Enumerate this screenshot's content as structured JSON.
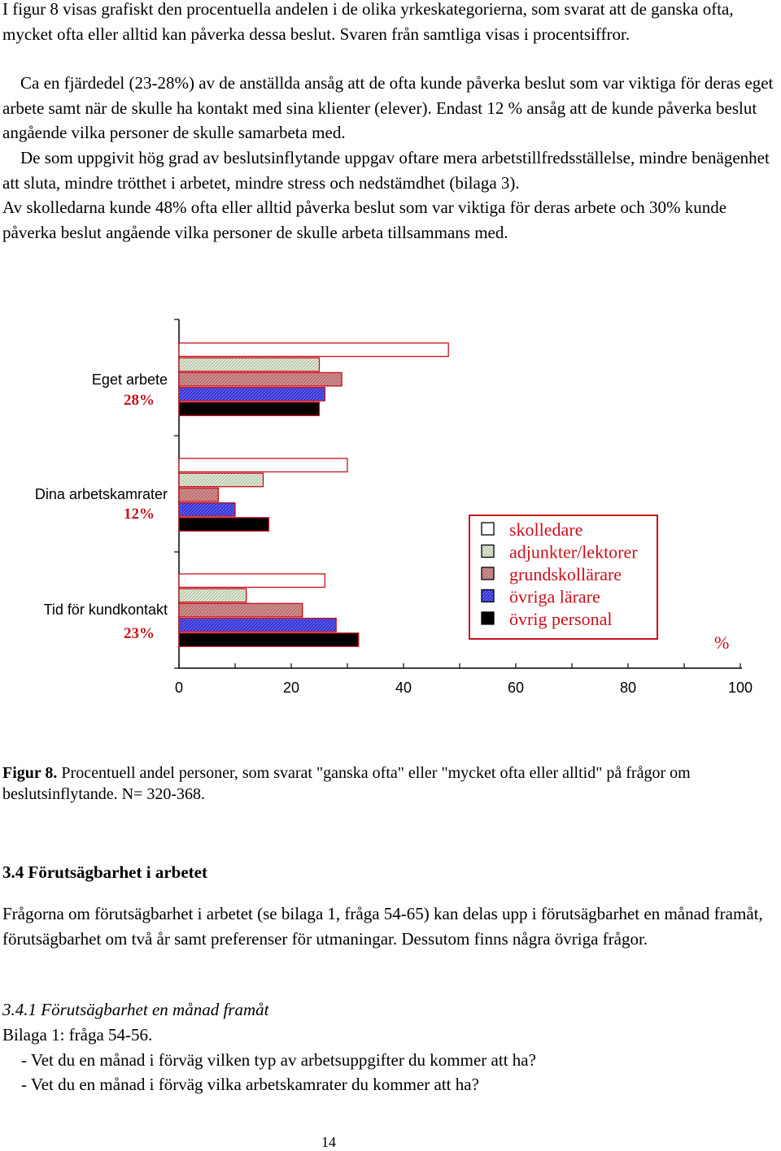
{
  "intro": {
    "p1": "I figur 8 visas grafiskt den procentuella andelen i de olika yrkeskategorierna, som svarat att de ganska ofta, mycket ofta eller alltid kan påverka dessa beslut. Svaren från samtliga visas i procentsiffror.",
    "p2": "Ca en fjärdedel (23-28%) av de anställda ansåg att de ofta kunde påverka beslut som var viktiga för deras eget arbete samt när de skulle ha kontakt med sina klienter (elever). Endast 12 % ansåg att de kunde påverka beslut angående vilka personer de skulle samarbeta med.",
    "p3": "De som uppgivit hög grad av beslutsinflytande uppgav oftare mera arbetstillfredsställelse, mindre benägenhet att sluta, mindre trötthet i arbetet, mindre stress och nedstämdhet (bilaga 3).",
    "p4": "Av skolledarna kunde 48% ofta eller alltid påverka beslut som var viktiga för deras arbete och 30% kunde påverka beslut angående vilka personer de skulle arbeta tillsammans med."
  },
  "chart_data": {
    "type": "bar",
    "orientation": "horizontal",
    "categories": [
      {
        "label": "Eget arbete",
        "total": "28%"
      },
      {
        "label": "Dina arbetskamrater",
        "total": "12%"
      },
      {
        "label": "Tid för kundkontakt",
        "total": "23%"
      }
    ],
    "series": [
      {
        "name": "skolledare",
        "values": [
          48,
          30,
          26
        ],
        "color": "#ffffff"
      },
      {
        "name": "adjunkter/lektorer",
        "values": [
          25,
          15,
          12
        ],
        "color": "#d6e4cc"
      },
      {
        "name": "grundskollärare",
        "values": [
          29,
          7,
          22
        ],
        "color": "#c98080"
      },
      {
        "name": "övriga lärare",
        "values": [
          26,
          10,
          28
        ],
        "color": "#3b3bd6"
      },
      {
        "name": "övrig personal",
        "values": [
          25,
          16,
          32
        ],
        "color": "#000000"
      }
    ],
    "x_ticks": [
      "0",
      "20",
      "40",
      "60",
      "80",
      "100"
    ],
    "xlim": [
      0,
      100
    ],
    "xlabel": "%",
    "legend_position": "right",
    "legend_border_color": "#c8101c"
  },
  "caption": {
    "label": "Figur 8.",
    "text": " Procentuell andel personer, som svarat \"ganska ofta\" eller \"mycket ofta eller alltid\" på frågor om beslutsinflytande. N= 320-368."
  },
  "section": {
    "heading": "3.4 Förutsägbarhet i arbetet",
    "p5": "Frågorna om förutsägbarhet i arbetet (se bilaga 1, fråga 54-65) kan delas upp i förutsägbarhet en månad framåt, förutsägbarhet om två år samt preferenser för utmaningar. Dessutom finns några övriga frågor.",
    "subheading": "3.4.1 Förutsägbarhet  en månad framåt",
    "ref": "Bilaga 1: fråga 54-56.",
    "q1": "- Vet du en månad i förväg vilken typ av arbetsuppgifter du kommer att ha?",
    "q2": "- Vet du en månad i förväg vilka arbetskamrater du kommer att ha?"
  },
  "page_number": "14"
}
